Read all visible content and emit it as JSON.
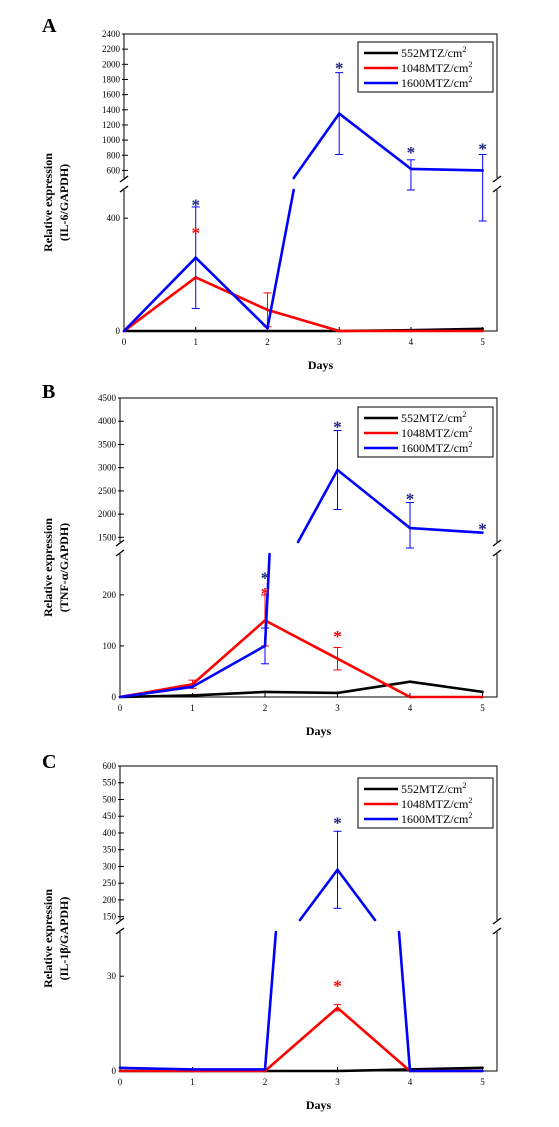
{
  "figure": {
    "xlabel": "Days",
    "legend_location": "top-right",
    "grid": false
  },
  "chart_data": [
    {
      "panel": "A",
      "type": "line",
      "xlabel": "Days",
      "ylabel": [
        "Relative expression",
        "(IL-6/GAPDH)"
      ],
      "broken_y_axis": true,
      "ylim_lower": [
        0,
        500
      ],
      "ylim_upper": [
        500,
        2400
      ],
      "upper_ticks": [
        600,
        800,
        1000,
        1200,
        1400,
        1600,
        1800,
        2000,
        2200,
        2400
      ],
      "lower_ticks": [
        0,
        400
      ],
      "x": [
        0,
        1,
        2,
        3,
        4,
        5
      ],
      "x_ticks": [
        0,
        1,
        2,
        3,
        4,
        5
      ],
      "series": [
        {
          "name": "552MTZ/cm2",
          "legend_base": "552MTZ/cm",
          "legend_sup": "2",
          "color": "#000000",
          "values": [
            0,
            0,
            0,
            0,
            3,
            8
          ],
          "err": [
            0,
            0,
            0,
            0,
            0,
            0
          ]
        },
        {
          "name": "1048MTZ/cm2",
          "legend_base": "1048MTZ/cm",
          "legend_sup": "2",
          "color": "#ff0000",
          "values": [
            0,
            190,
            75,
            0,
            0,
            0
          ],
          "err": [
            0,
            0,
            60,
            0,
            0,
            0
          ]
        },
        {
          "name": "1600MTZ/cm2",
          "legend_base": "1600MTZ/cm",
          "legend_sup": "2",
          "color": "#0000ff",
          "values": [
            0,
            260,
            10,
            1350,
            620,
            600
          ],
          "err": [
            0,
            180,
            0,
            540,
            120,
            210
          ]
        }
      ],
      "annotations": [
        {
          "x": 1,
          "value": 460,
          "color": "#1a237e",
          "text": "*"
        },
        {
          "x": 1,
          "value": 360,
          "color": "#ff0000",
          "text": "*"
        },
        {
          "x": 3,
          "value": 2000,
          "color": "#1a237e",
          "text": "*"
        },
        {
          "x": 4,
          "value": 880,
          "color": "#1a237e",
          "text": "*"
        },
        {
          "x": 5,
          "value": 930,
          "color": "#1a237e",
          "text": "*"
        }
      ]
    },
    {
      "panel": "B",
      "type": "line",
      "xlabel": "Days",
      "ylabel": [
        "Relative expression",
        "(TNF-α/GAPDH)"
      ],
      "broken_y_axis": true,
      "ylim_lower": [
        0,
        280
      ],
      "ylim_upper": [
        1400,
        4500
      ],
      "upper_ticks": [
        1500,
        2000,
        2500,
        3000,
        3500,
        4000,
        4500
      ],
      "lower_ticks": [
        0,
        100,
        200
      ],
      "x": [
        0,
        1,
        2,
        3,
        4,
        5
      ],
      "x_ticks": [
        0,
        1,
        2,
        3,
        4,
        5
      ],
      "series": [
        {
          "name": "552MTZ/cm2",
          "legend_base": "552MTZ/cm",
          "legend_sup": "2",
          "color": "#000000",
          "values": [
            0,
            3,
            10,
            8,
            30,
            10
          ],
          "err": [
            0,
            0,
            0,
            0,
            0,
            0
          ]
        },
        {
          "name": "1048MTZ/cm2",
          "legend_base": "1048MTZ/cm",
          "legend_sup": "2",
          "color": "#ff0000",
          "values": [
            0,
            25,
            150,
            75,
            0,
            0
          ],
          "err": [
            0,
            8,
            50,
            22,
            0,
            0
          ]
        },
        {
          "name": "1600MTZ/cm2",
          "legend_base": "1600MTZ/cm",
          "legend_sup": "2",
          "color": "#0000ff",
          "values": [
            0,
            20,
            100,
            2950,
            1700,
            1600
          ],
          "err": [
            0,
            0,
            35,
            850,
            550,
            0
          ]
        }
      ],
      "annotations": [
        {
          "x": 2,
          "value": 240,
          "color": "#1a237e",
          "text": "*"
        },
        {
          "x": 2,
          "value": 210,
          "color": "#ff0000",
          "text": "*"
        },
        {
          "x": 3,
          "value": 125,
          "color": "#ff0000",
          "text": "*"
        },
        {
          "x": 3,
          "value": 3950,
          "color": "#1a237e",
          "text": "*"
        },
        {
          "x": 4,
          "value": 2400,
          "color": "#1a237e",
          "text": "*"
        },
        {
          "x": 5,
          "value": 1760,
          "color": "#1a237e",
          "text": "*"
        }
      ]
    },
    {
      "panel": "C",
      "type": "line",
      "xlabel": "Days",
      "ylabel": [
        "Relative expression",
        "(IL-1β/GAPDH)"
      ],
      "broken_y_axis": true,
      "ylim_lower": [
        0,
        44
      ],
      "ylim_upper": [
        140,
        600
      ],
      "upper_ticks": [
        150,
        200,
        250,
        300,
        350,
        400,
        450,
        500,
        550,
        600
      ],
      "lower_ticks": [
        0,
        30
      ],
      "x": [
        0,
        1,
        2,
        3,
        4,
        5
      ],
      "x_ticks": [
        0,
        1,
        2,
        3,
        4,
        5
      ],
      "series": [
        {
          "name": "552MTZ/cm2",
          "legend_base": "552MTZ/cm",
          "legend_sup": "2",
          "color": "#000000",
          "values": [
            0,
            0,
            0,
            0,
            0.5,
            1
          ],
          "err": [
            0,
            0,
            0,
            0,
            0,
            0
          ]
        },
        {
          "name": "1048MTZ/cm2",
          "legend_base": "1048MTZ/cm",
          "legend_sup": "2",
          "color": "#ff0000",
          "values": [
            0,
            0,
            0,
            20,
            0,
            0
          ],
          "err": [
            0,
            0,
            0,
            1,
            0,
            0
          ]
        },
        {
          "name": "1600MTZ/cm2",
          "legend_base": "1600MTZ/cm",
          "legend_sup": "2",
          "color": "#0000ff",
          "values": [
            1,
            0.5,
            0.5,
            290,
            0,
            0
          ],
          "err": [
            0,
            0,
            0,
            115,
            0,
            0
          ]
        }
      ],
      "annotations": [
        {
          "x": 3,
          "value": 440,
          "color": "#1a237e",
          "text": "*"
        },
        {
          "x": 3,
          "value": 28,
          "color": "#ff0000",
          "text": "*"
        }
      ]
    }
  ]
}
